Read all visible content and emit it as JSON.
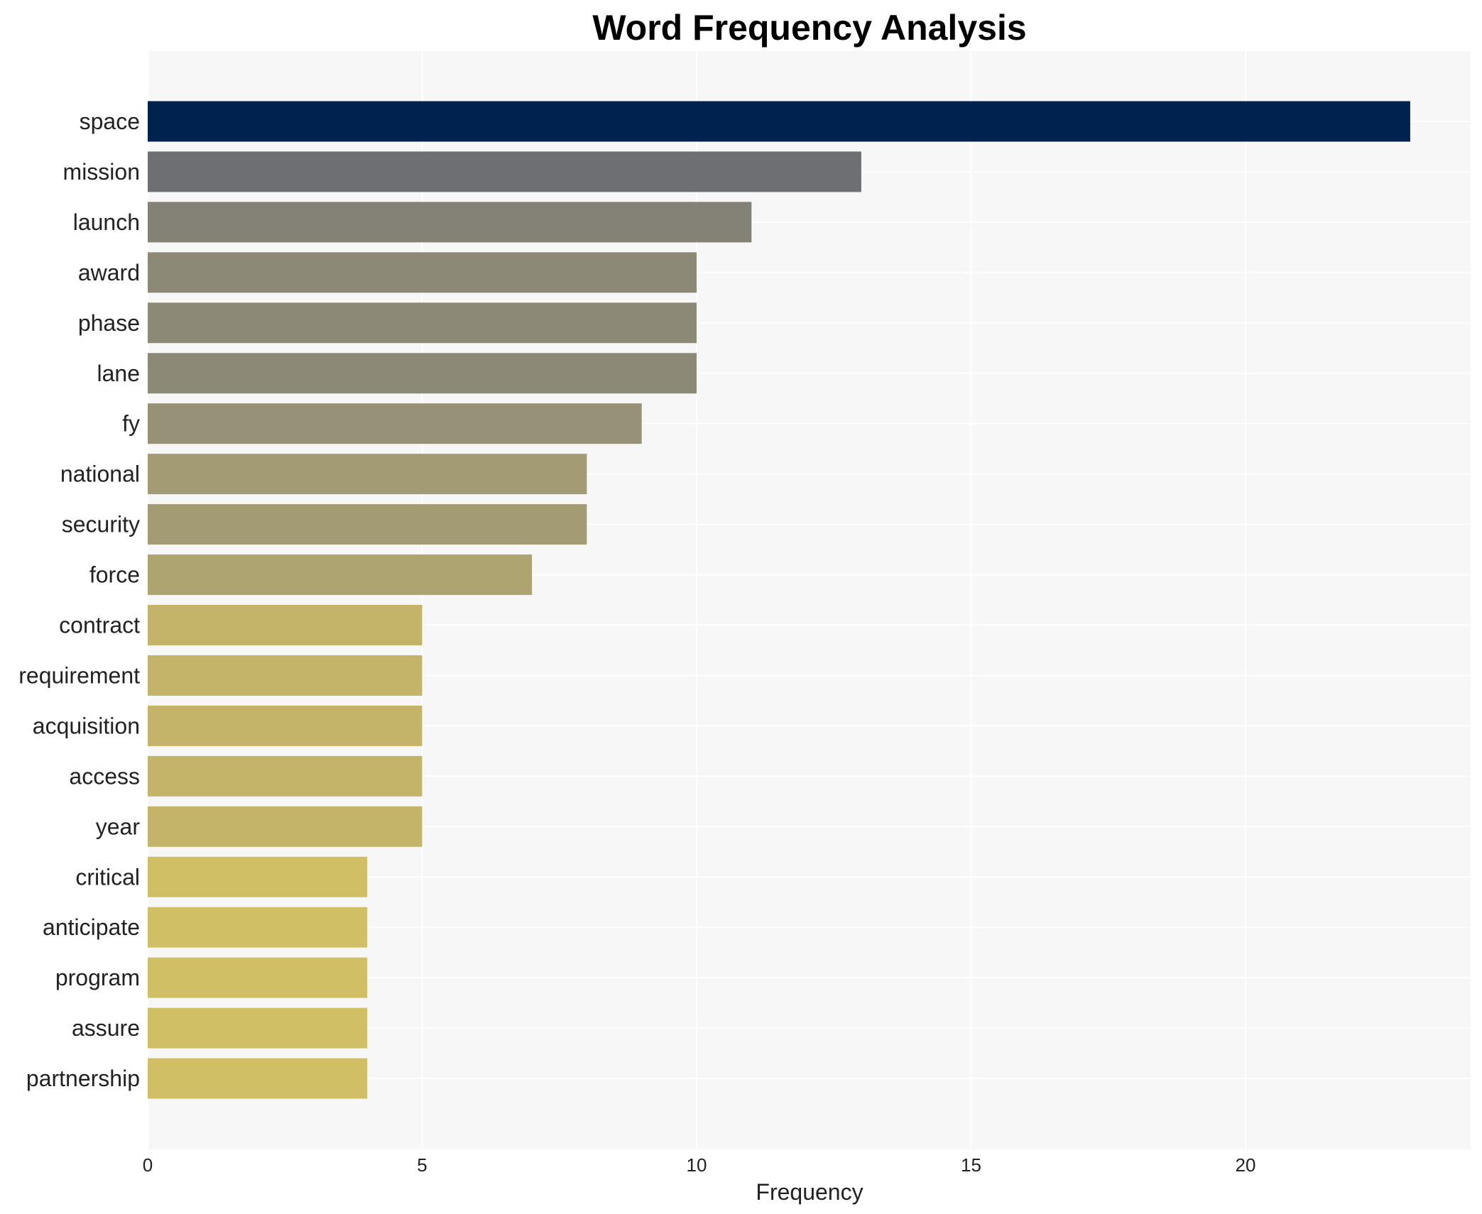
{
  "chart_data": {
    "type": "bar",
    "orientation": "horizontal",
    "title": "Word Frequency Analysis",
    "xlabel": "Frequency",
    "ylabel": "",
    "xlim": [
      0,
      24
    ],
    "xticks": [
      0,
      5,
      10,
      15,
      20
    ],
    "grid": true,
    "categories": [
      "space",
      "mission",
      "launch",
      "award",
      "phase",
      "lane",
      "fy",
      "national",
      "security",
      "force",
      "contract",
      "requirement",
      "acquisition",
      "access",
      "year",
      "critical",
      "anticipate",
      "program",
      "assure",
      "partnership"
    ],
    "values": [
      23,
      13,
      11,
      10,
      10,
      10,
      9,
      8,
      8,
      7,
      5,
      5,
      5,
      5,
      5,
      4,
      4,
      4,
      4,
      4
    ],
    "colors": [
      "#00224e",
      "#6e6f73",
      "#848176",
      "#8c8a76",
      "#8c8a76",
      "#8c8a76",
      "#979177",
      "#a39b73",
      "#a39b73",
      "#aea472",
      "#c4b46a",
      "#c4b46a",
      "#c4b46a",
      "#c4b46a",
      "#c4b46a",
      "#d0bf64",
      "#d0bf64",
      "#d0bf64",
      "#d0bf64",
      "#d0bf64"
    ],
    "background_color": "#f7f7f7"
  }
}
